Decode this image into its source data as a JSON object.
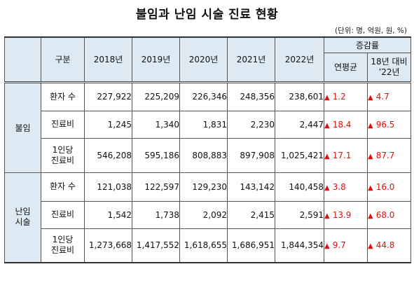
{
  "title": "불임과 난임 시술 진료 현황",
  "unit_note": "(단위: 명, 억원, 원, %)",
  "header": {
    "category": "구분",
    "years": [
      "2018년",
      "2019년",
      "2020년",
      "2021년",
      "2022년"
    ],
    "growth": "증감률",
    "growth_avg": "연평균",
    "growth_vs_1": "18년 대비",
    "growth_vs_2": "’22년"
  },
  "indicator_arrow": "▲",
  "sections": [
    {
      "name": "불임",
      "rows": [
        {
          "item": [
            "환자 수"
          ],
          "values": [
            "227,922",
            "225,209",
            "226,346",
            "248,356",
            "238,601"
          ],
          "avg": "1.2",
          "vs18": "4.7"
        },
        {
          "item": [
            "진료비"
          ],
          "values": [
            "1,245",
            "1,340",
            "1,831",
            "2,230",
            "2,447"
          ],
          "avg": "18.4",
          "vs18": "96.5"
        },
        {
          "item": [
            "1인당",
            "진료비"
          ],
          "values": [
            "546,208",
            "595,186",
            "808,883",
            "897,908",
            "1,025,421"
          ],
          "avg": "17.1",
          "vs18": "87.7"
        }
      ]
    },
    {
      "name": [
        "난임",
        "시술"
      ],
      "rows": [
        {
          "item": [
            "환자 수"
          ],
          "values": [
            "121,038",
            "122,597",
            "129,230",
            "143,142",
            "140,458"
          ],
          "avg": "3.8",
          "vs18": "16.0"
        },
        {
          "item": [
            "진료비"
          ],
          "values": [
            "1,542",
            "1,738",
            "2,092",
            "2,415",
            "2,591"
          ],
          "avg": "13.9",
          "vs18": "68.0"
        },
        {
          "item": [
            "1인당",
            "진료비"
          ],
          "values": [
            "1,273,668",
            "1,417,552",
            "1,618,655",
            "1,686,951",
            "1,844,354"
          ],
          "avg": "9.7",
          "vs18": "44.8"
        }
      ]
    }
  ],
  "colors": {
    "header_bg": "#dde9f3",
    "arrow": "#d11111"
  }
}
